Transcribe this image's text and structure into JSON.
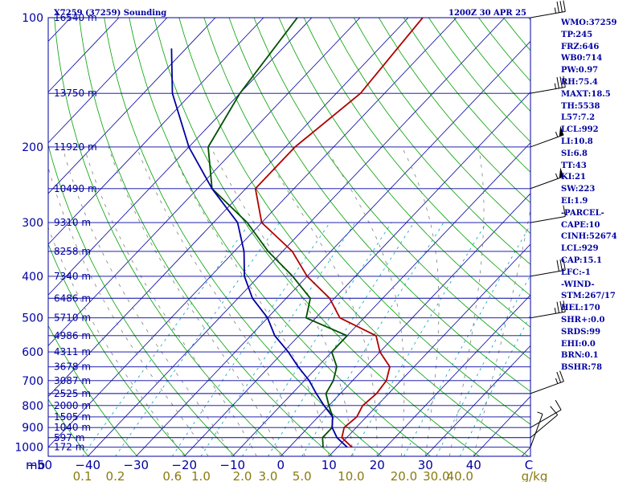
{
  "header": {
    "left": "X7259 (37259) Sounding",
    "right": "1200Z 30 APR 25"
  },
  "chart_data": {
    "type": "line",
    "title": "X7259 (37259) Sounding",
    "ylabel": "mb",
    "xlabel": "C",
    "pressure_levels": [
      1000,
      900,
      800,
      700,
      600,
      500,
      400,
      300,
      200,
      100
    ],
    "pressure_tick_labels": [
      "1000",
      "900",
      "800",
      "700",
      "600",
      "500",
      "400",
      "300",
      "200",
      "100"
    ],
    "height_labels": [
      {
        "p": 100,
        "label": "16540 m"
      },
      {
        "p": 150,
        "label": "13750 m"
      },
      {
        "p": 200,
        "label": "11920 m"
      },
      {
        "p": 250,
        "label": "10490 m"
      },
      {
        "p": 300,
        "label": "9310 m"
      },
      {
        "p": 350,
        "label": "8258 m"
      },
      {
        "p": 400,
        "label": "7340 m"
      },
      {
        "p": 450,
        "label": "6486 m"
      },
      {
        "p": 500,
        "label": "5710 m"
      },
      {
        "p": 550,
        "label": "4986 m"
      },
      {
        "p": 600,
        "label": "4311 m"
      },
      {
        "p": 650,
        "label": "3678 m"
      },
      {
        "p": 700,
        "label": "3087 m"
      },
      {
        "p": 750,
        "label": "2525 m"
      },
      {
        "p": 800,
        "label": "2000 m"
      },
      {
        "p": 850,
        "label": "1505 m"
      },
      {
        "p": 900,
        "label": "1040 m"
      },
      {
        "p": 950,
        "label": "597 m"
      },
      {
        "p": 1000,
        "label": "172 m"
      }
    ],
    "temp_tick_values": [
      -50,
      -40,
      -30,
      -20,
      -10,
      0,
      10,
      20,
      30,
      40
    ],
    "temp_tick_labels": [
      "−50",
      "−40",
      "−30",
      "−20",
      "−10",
      "0",
      "10",
      "20",
      "30",
      "40"
    ],
    "temp_axis_unit": "C",
    "pressure_axis_unit": "mb",
    "xlim": [
      -50,
      50
    ],
    "ylim": [
      1050,
      100
    ],
    "mixing_ratio_labels": [
      "0.1",
      "0.2",
      "0.6",
      "1.0",
      "2.0",
      "3.0",
      "5.0",
      "10.0",
      "20.0",
      "30.0",
      "40.0"
    ],
    "mixing_ratio_values": [
      0.1,
      0.2,
      0.6,
      1.0,
      2.0,
      3.0,
      5.0,
      10.0,
      20.0,
      30.0,
      40.0
    ],
    "mixing_ratio_unit": "g/kg",
    "series": [
      {
        "color": "#b00000",
        "points": [
          [
            1000,
            13
          ],
          [
            950,
            9
          ],
          [
            900,
            7.5
          ],
          [
            850,
            8
          ],
          [
            800,
            7
          ],
          [
            750,
            7.5
          ],
          [
            700,
            7
          ],
          [
            650,
            5
          ],
          [
            600,
            0
          ],
          [
            550,
            -4
          ],
          [
            500,
            -15
          ],
          [
            450,
            -21
          ],
          [
            400,
            -30
          ],
          [
            350,
            -38
          ],
          [
            300,
            -50
          ],
          [
            250,
            -58
          ],
          [
            200,
            -58
          ],
          [
            150,
            -55
          ],
          [
            100,
            -57
          ]
        ]
      },
      {
        "color": "#005000",
        "points": [
          [
            1000,
            7
          ],
          [
            950,
            5
          ],
          [
            900,
            5
          ],
          [
            850,
            3
          ],
          [
            800,
            0
          ],
          [
            750,
            -3
          ],
          [
            700,
            -4
          ],
          [
            650,
            -6
          ],
          [
            600,
            -10
          ],
          [
            550,
            -10
          ],
          [
            500,
            -22
          ],
          [
            450,
            -25
          ],
          [
            400,
            -33
          ],
          [
            350,
            -43
          ],
          [
            300,
            -53
          ],
          [
            250,
            -67
          ],
          [
            200,
            -76
          ],
          [
            150,
            -80
          ],
          [
            100,
            -83
          ]
        ]
      },
      {
        "color": "#0000a0",
        "points": [
          [
            1000,
            12
          ],
          [
            950,
            8
          ],
          [
            900,
            5
          ],
          [
            850,
            3
          ],
          [
            800,
            -1
          ],
          [
            750,
            -5
          ],
          [
            700,
            -9
          ],
          [
            650,
            -14
          ],
          [
            600,
            -19
          ],
          [
            550,
            -25
          ],
          [
            500,
            -30
          ],
          [
            450,
            -37
          ],
          [
            400,
            -43
          ],
          [
            350,
            -48
          ],
          [
            300,
            -55
          ],
          [
            250,
            -67
          ],
          [
            200,
            -80
          ],
          [
            150,
            -94
          ],
          [
            118,
            -103
          ]
        ]
      }
    ],
    "wind_barbs": [
      {
        "p": 1000,
        "dir": 200,
        "spd": 5
      },
      {
        "p": 950,
        "dir": 230,
        "spd": 10
      },
      {
        "p": 900,
        "dir": 240,
        "spd": 10
      },
      {
        "p": 750,
        "dir": 250,
        "spd": 25
      },
      {
        "p": 500,
        "dir": 260,
        "spd": 35
      },
      {
        "p": 400,
        "dir": 260,
        "spd": 30
      },
      {
        "p": 300,
        "dir": 260,
        "spd": 10
      },
      {
        "p": 250,
        "dir": 250,
        "spd": 55
      },
      {
        "p": 200,
        "dir": 250,
        "spd": 55
      },
      {
        "p": 150,
        "dir": 260,
        "spd": 35
      },
      {
        "p": 100,
        "dir": 260,
        "spd": 35
      }
    ],
    "grid": true
  },
  "indices": [
    "WMO:37259",
    "TP:245",
    "FRZ:646",
    "WB0:714",
    "PW:0.97",
    "RH:75.4",
    "MAXT:18.5",
    "TH:5538",
    "L57:7.2",
    "LCL:992",
    "LI:10.8",
    "SI:6.8",
    "TT:43",
    "KI:21",
    "SW:223",
    "EI:1.9",
    "-PARCEL-",
    "CAPE:10",
    "CINH:52674",
    "LCL:929",
    "CAP:15.1",
    "LFC:-1",
    "-WIND-",
    "STM:267/17",
    "HEL:170",
    "SHR+:0.0",
    "SRDS:99",
    "EHI:0.0",
    "BRN:0.1",
    "BSHR:78"
  ]
}
